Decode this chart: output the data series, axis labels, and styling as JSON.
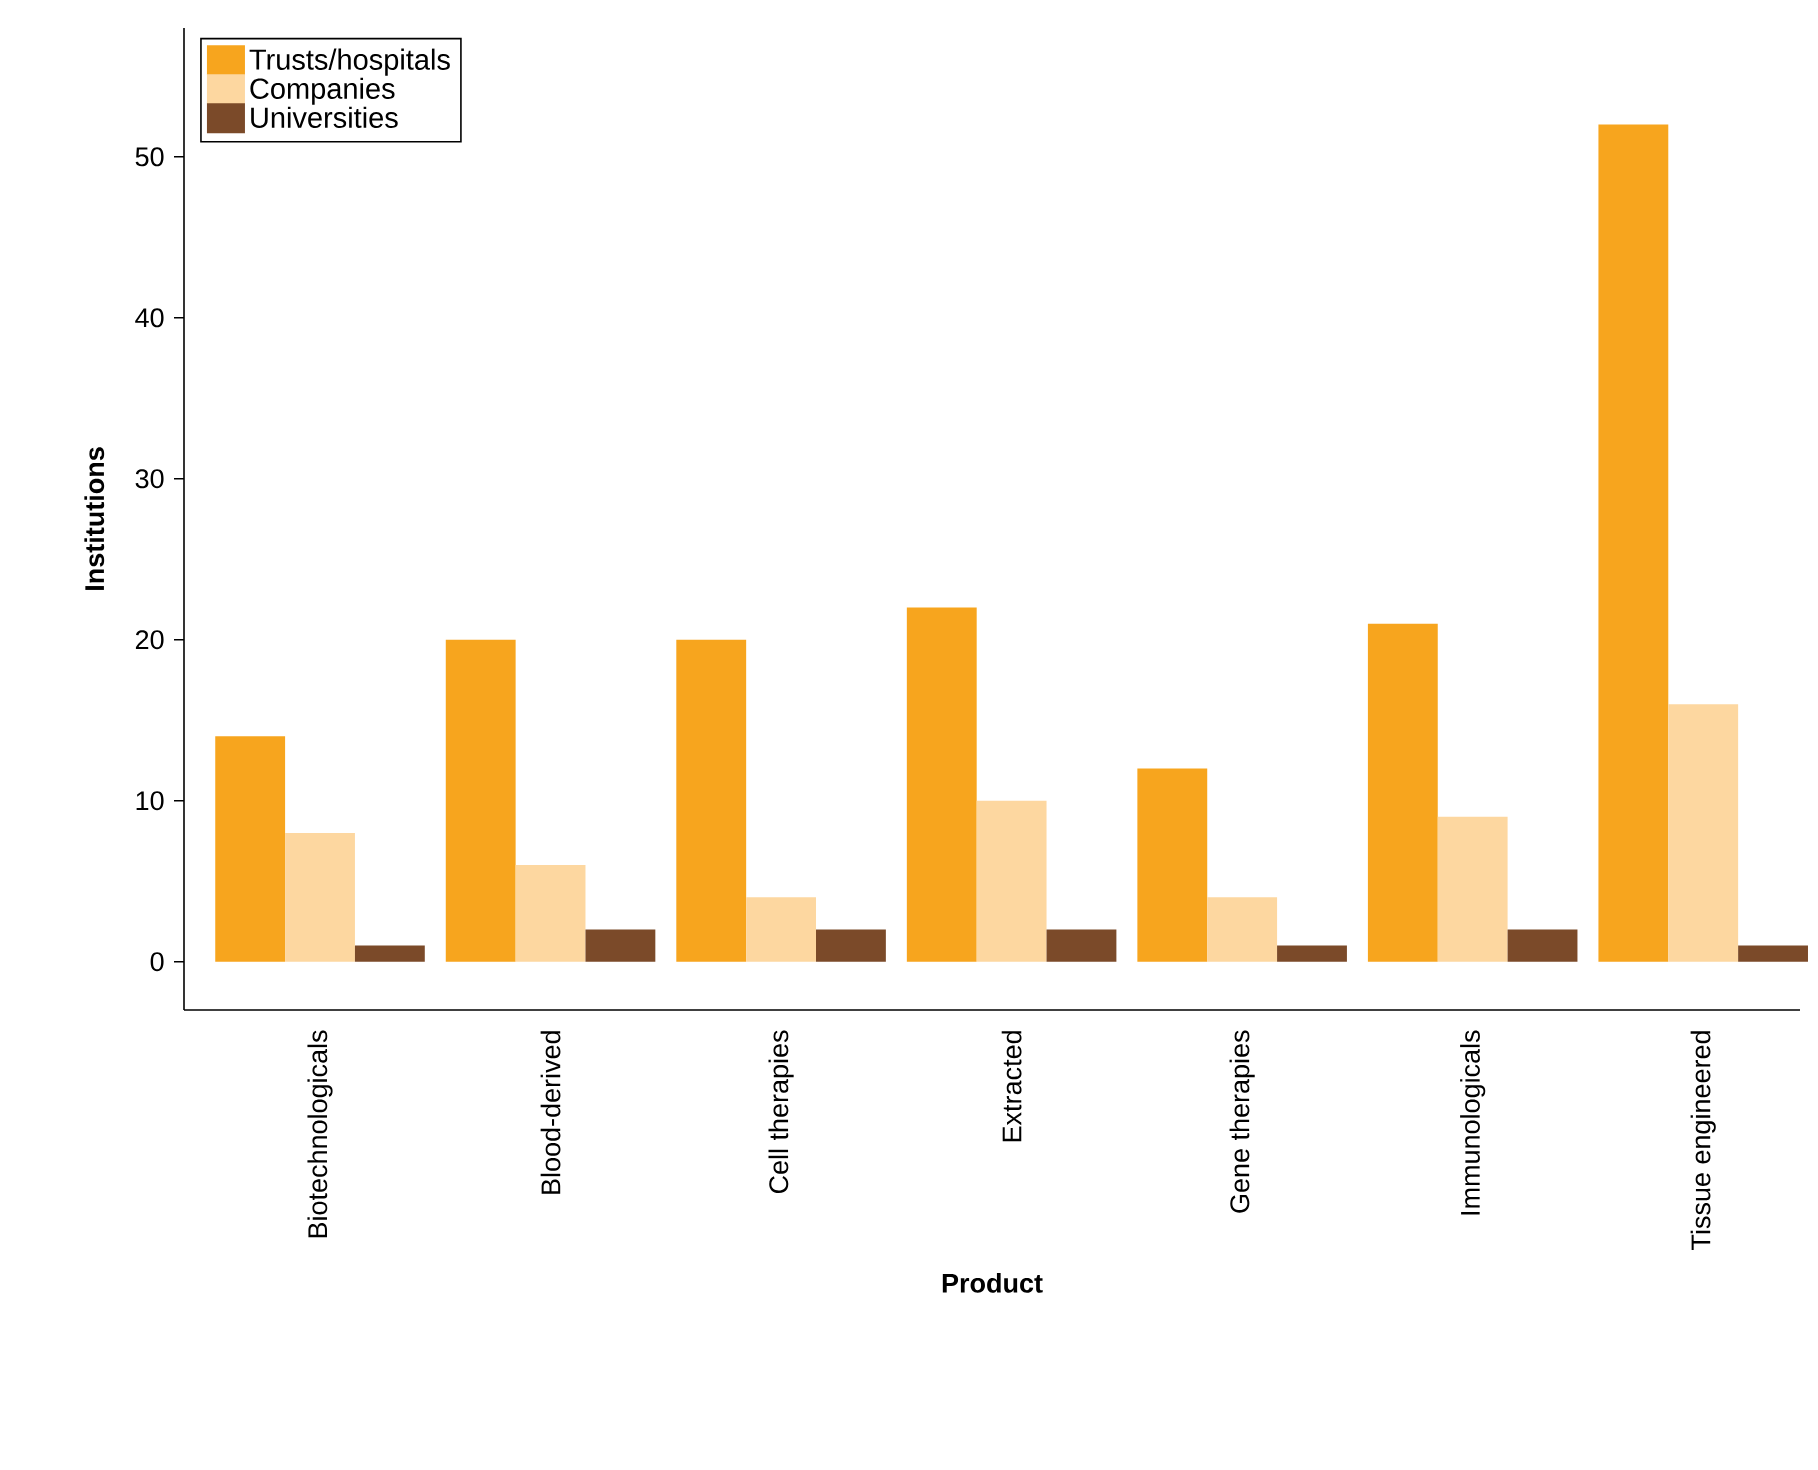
{
  "chart_data": {
    "type": "bar",
    "xlabel": "Product",
    "ylabel": "Institutions",
    "categories": [
      "Biotechnologicals",
      "Blood-derived",
      "Cell therapies",
      "Extracted",
      "Gene therapies",
      "Immunologicals",
      "Tissue engineered"
    ],
    "series": [
      {
        "name": "Trusts/hospitals",
        "color": "#f7a51e",
        "values": [
          14,
          20,
          20,
          22,
          12,
          21,
          52
        ]
      },
      {
        "name": "Companies",
        "color": "#fdd7a0",
        "values": [
          8,
          6,
          4,
          10,
          4,
          9,
          16
        ]
      },
      {
        "name": "Universities",
        "color": "#7b4a29",
        "values": [
          1,
          2,
          2,
          2,
          1,
          2,
          1
        ]
      }
    ],
    "ylim": [
      -3,
      58
    ],
    "yticks": [
      0,
      10,
      20,
      30,
      40,
      50
    ],
    "legend": "top left"
  }
}
